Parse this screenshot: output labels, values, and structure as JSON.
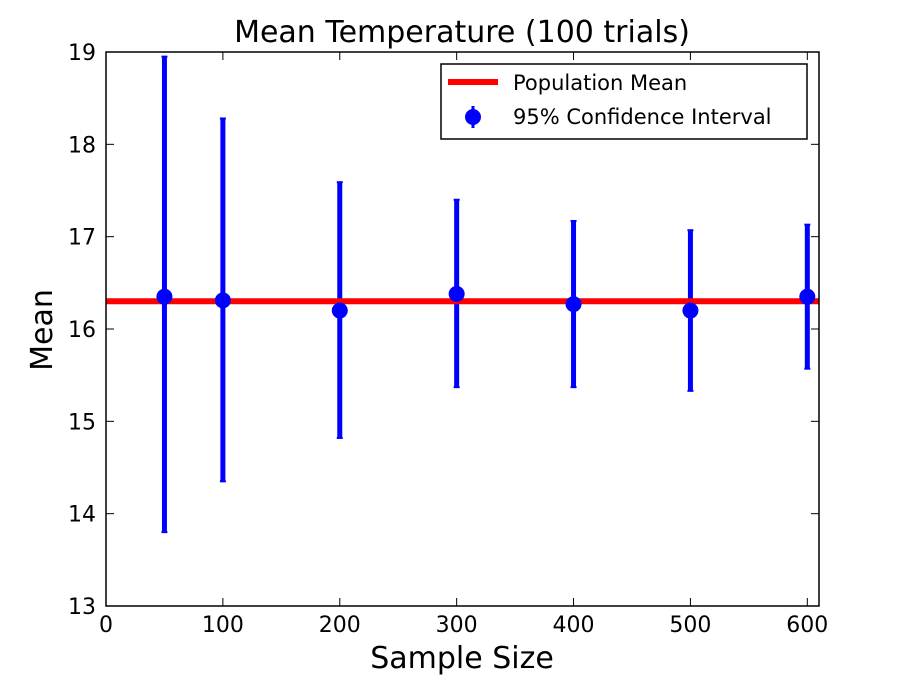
{
  "chart_data": {
    "type": "scatter",
    "title": "Mean Temperature (100 trials)",
    "xlabel": "Sample Size",
    "ylabel": "Mean",
    "xlim": [
      0,
      610
    ],
    "ylim": [
      13,
      19
    ],
    "xticks": [
      "0",
      "100",
      "200",
      "300",
      "400",
      "500",
      "600"
    ],
    "yticks": [
      "13",
      "14",
      "15",
      "16",
      "17",
      "18",
      "19"
    ],
    "legend_position": "top-right",
    "grid": false,
    "series": [
      {
        "name": "Population Mean",
        "kind": "hline",
        "color": "#ff0000",
        "y": 16.3
      },
      {
        "name": "95% Confidence Interval",
        "kind": "errorbar",
        "color": "#0000ff",
        "x": [
          50,
          100,
          200,
          300,
          400,
          500,
          600
        ],
        "y": [
          16.35,
          16.31,
          16.2,
          16.38,
          16.27,
          16.2,
          16.35
        ],
        "lower": [
          13.8,
          14.35,
          14.82,
          15.37,
          15.37,
          15.33,
          15.57
        ],
        "upper": [
          18.95,
          18.28,
          17.59,
          17.4,
          17.17,
          17.07,
          17.13
        ]
      }
    ]
  }
}
